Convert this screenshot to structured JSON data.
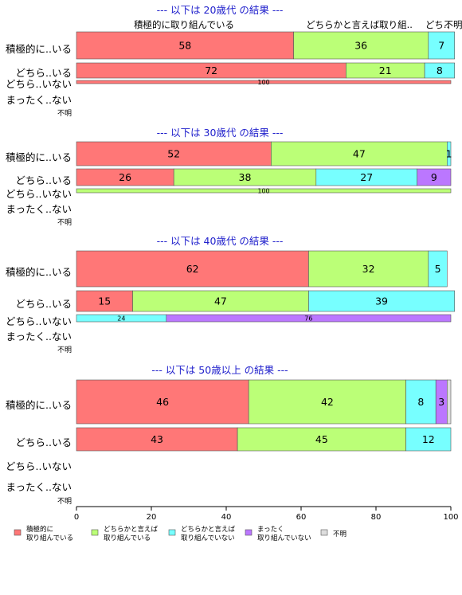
{
  "chart_data": {
    "type": "bar",
    "orientation": "horizontal",
    "stacked": true,
    "xlim": [
      0,
      100
    ],
    "x_ticks": [
      0,
      20,
      40,
      60,
      80,
      100
    ],
    "colors": [
      "#ff7777",
      "#bbff77",
      "#77ffff",
      "#bb77ff",
      "#dddddd"
    ],
    "column_headers": [
      "積極的に取り組んでいる",
      "どちらかと言えば取り組..",
      "どち..",
      "不明"
    ],
    "legend": [
      "積極的に\n取り組んでいる",
      "どちらかと言えば\n取り組んでいる",
      "どちらかと言えば\n取り組んでいない",
      "まったく\n取り組んでいない",
      "不明"
    ],
    "groups": [
      {
        "title": "--- 以下は 20歳代 の結果 ---",
        "rows": [
          {
            "label": "積極的に..いる",
            "values": [
              58,
              36,
              7,
              0,
              0
            ],
            "shown": [
              "58",
              "36",
              "7",
              "",
              ""
            ]
          },
          {
            "label": "どちら..いる",
            "values": [
              72,
              21,
              8,
              0,
              0
            ],
            "shown": [
              "72",
              "21",
              "8",
              "",
              ""
            ]
          },
          {
            "label": "どちら..いない",
            "values": [
              100,
              0,
              0,
              0,
              0
            ],
            "shown": [
              "100",
              "",
              "",
              "",
              ""
            ]
          },
          {
            "label": "まったく..ない",
            "values": [],
            "shown": []
          },
          {
            "label": "不明",
            "values": [],
            "shown": []
          }
        ]
      },
      {
        "title": "--- 以下は 30歳代 の結果 ---",
        "rows": [
          {
            "label": "積極的に..いる",
            "values": [
              52,
              47,
              1,
              0,
              0
            ],
            "shown": [
              "52",
              "47",
              "1",
              "",
              ""
            ]
          },
          {
            "label": "どちら..いる",
            "values": [
              26,
              38,
              27,
              9,
              0
            ],
            "shown": [
              "26",
              "38",
              "27",
              "9",
              ""
            ]
          },
          {
            "label": "どちら..いない",
            "values": [
              0,
              100,
              0,
              0,
              0
            ],
            "shown": [
              "",
              "100",
              "",
              "",
              ""
            ]
          },
          {
            "label": "まったく..ない",
            "values": [],
            "shown": []
          },
          {
            "label": "不明",
            "values": [],
            "shown": []
          }
        ]
      },
      {
        "title": "--- 以下は 40歳代 の結果 ---",
        "rows": [
          {
            "label": "積極的に..いる",
            "values": [
              62,
              32,
              5,
              0,
              0
            ],
            "shown": [
              "62",
              "32",
              "5",
              "",
              ""
            ]
          },
          {
            "label": "どちら..いる",
            "values": [
              15,
              47,
              39,
              0,
              0
            ],
            "shown": [
              "15",
              "47",
              "39",
              "",
              ""
            ]
          },
          {
            "label": "どちら..いない",
            "values": [
              0,
              0,
              24,
              76,
              0
            ],
            "shown": [
              "",
              "",
              "24",
              "76",
              ""
            ]
          },
          {
            "label": "まったく..ない",
            "values": [],
            "shown": []
          },
          {
            "label": "不明",
            "values": [],
            "shown": []
          }
        ]
      },
      {
        "title": "--- 以下は 50歳以上 の結果 ---",
        "rows": [
          {
            "label": "積極的に..いる",
            "values": [
              46,
              42,
              8,
              3,
              1
            ],
            "shown": [
              "46",
              "42",
              "8",
              "3",
              ""
            ]
          },
          {
            "label": "どちら..いる",
            "values": [
              43,
              45,
              12,
              0,
              0
            ],
            "shown": [
              "43",
              "45",
              "12",
              "",
              ""
            ]
          },
          {
            "label": "どちら..いない",
            "values": [],
            "shown": []
          },
          {
            "label": "まったく..ない",
            "values": [],
            "shown": []
          },
          {
            "label": "不明",
            "values": [],
            "shown": []
          }
        ]
      }
    ]
  }
}
